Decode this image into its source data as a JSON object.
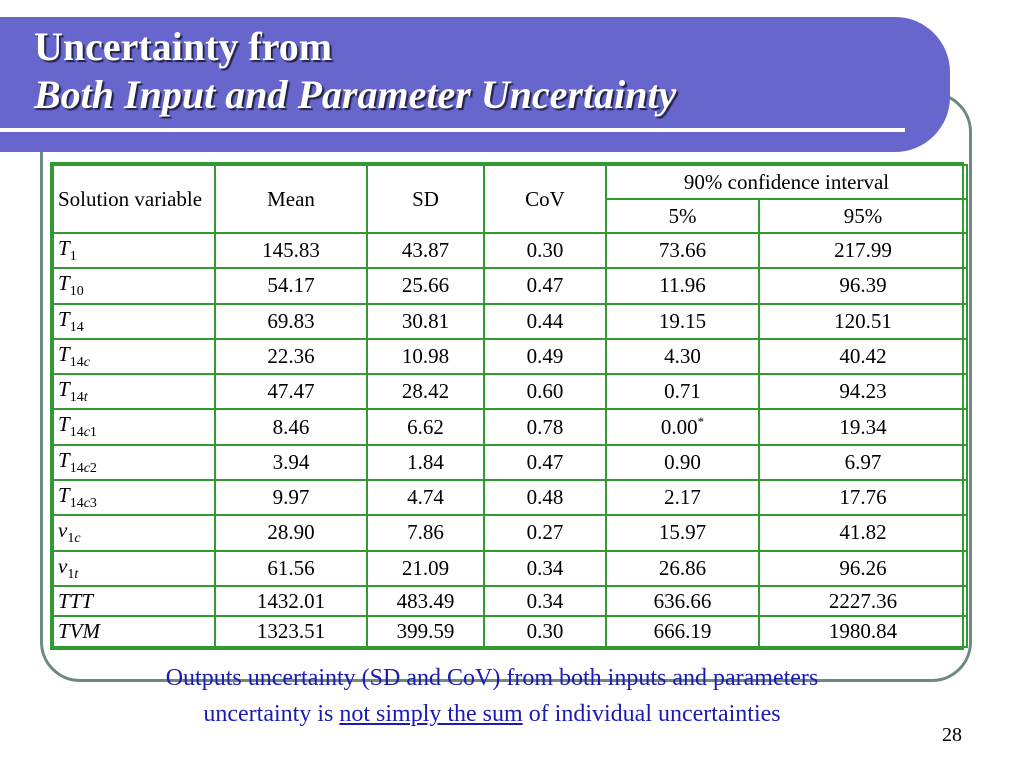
{
  "title": {
    "line1": "Uncertainty from",
    "line2": "Both Input and Parameter Uncertainty"
  },
  "table": {
    "header": {
      "solution_variable": "Solution variable",
      "mean": "Mean",
      "sd": "SD",
      "cov": "CoV",
      "ci": "90% confidence interval",
      "p5": "5%",
      "p95": "95%"
    },
    "rows": [
      {
        "var": "T",
        "sub": "1",
        "sub_italic": "",
        "mean": "145.83",
        "sd": "43.87",
        "cov": "0.30",
        "p5": "73.66",
        "p95": "217.99"
      },
      {
        "var": "T",
        "sub": "10",
        "sub_italic": "",
        "mean": "54.17",
        "sd": "25.66",
        "cov": "0.47",
        "p5": "11.96",
        "p95": "96.39"
      },
      {
        "var": "T",
        "sub": "14",
        "sub_italic": "",
        "mean": "69.83",
        "sd": "30.81",
        "cov": "0.44",
        "p5": "19.15",
        "p95": "120.51"
      },
      {
        "var": "T",
        "sub": "14",
        "sub_italic": "c",
        "mean": "22.36",
        "sd": "10.98",
        "cov": "0.49",
        "p5": "4.30",
        "p95": "40.42"
      },
      {
        "var": "T",
        "sub": "14",
        "sub_italic": "t",
        "mean": "47.47",
        "sd": "28.42",
        "cov": "0.60",
        "p5": "0.71",
        "p95": "94.23"
      },
      {
        "var": "T",
        "sub": "14",
        "sub_italic": "c",
        "sub_tail": "1",
        "mean": "8.46",
        "sd": "6.62",
        "cov": "0.78",
        "p5": "0.00",
        "p5_note": "*",
        "p95": "19.34"
      },
      {
        "var": "T",
        "sub": "14",
        "sub_italic": "c",
        "sub_tail": "2",
        "mean": "3.94",
        "sd": "1.84",
        "cov": "0.47",
        "p5": "0.90",
        "p95": "6.97"
      },
      {
        "var": "T",
        "sub": "14",
        "sub_italic": "c",
        "sub_tail": "3",
        "mean": "9.97",
        "sd": "4.74",
        "cov": "0.48",
        "p5": "2.17",
        "p95": "17.76"
      },
      {
        "var": "v",
        "sub": "1",
        "sub_italic": "c",
        "mean": "28.90",
        "sd": "7.86",
        "cov": "0.27",
        "p5": "15.97",
        "p95": "41.82"
      },
      {
        "var": "v",
        "sub": "1",
        "sub_italic": "t",
        "mean": "61.56",
        "sd": "21.09",
        "cov": "0.34",
        "p5": "26.86",
        "p95": "96.26"
      },
      {
        "var": "TTT",
        "sub": "",
        "sub_italic": "",
        "mean": "1432.01",
        "sd": "483.49",
        "cov": "0.34",
        "p5": "636.66",
        "p95": "2227.36"
      },
      {
        "var": "TVM",
        "sub": "",
        "sub_italic": "",
        "mean": "1323.51",
        "sd": "399.59",
        "cov": "0.30",
        "p5": "666.19",
        "p95": "1980.84"
      }
    ]
  },
  "caption": {
    "line1": "Outputs uncertainty (SD and CoV) from both inputs and parameters",
    "line2_pre": "uncertainty is ",
    "line2_underlined": "not simply the sum",
    "line2_post": " of individual uncertainties"
  },
  "page_number": "28",
  "colors": {
    "title_band": "#6666cc",
    "table_border": "#339933",
    "caption_text": "#1a1ab5",
    "frame": "#6a8a82"
  }
}
